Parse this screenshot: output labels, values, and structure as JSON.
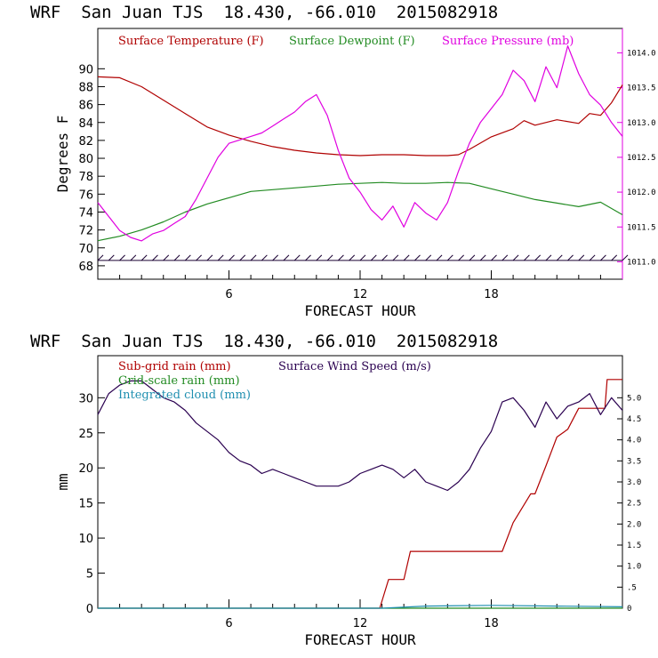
{
  "chart_data": [
    {
      "type": "line",
      "title": "WRF  San Juan TJS  18.430, -66.010  2015082918",
      "xlabel": "FORECAST HOUR",
      "ylabel": "Degrees F",
      "xlim": [
        0,
        24
      ],
      "ylim": [
        66.5,
        94.5
      ],
      "y2lim": [
        1010.75,
        1014.35
      ],
      "xticks": [
        6,
        12,
        18
      ],
      "yticks": [
        68,
        70,
        72,
        74,
        76,
        78,
        80,
        82,
        84,
        86,
        88,
        90
      ],
      "y2ticks": [
        1011.0,
        1011.5,
        1012.0,
        1012.5,
        1013.0,
        1013.5,
        1014.0
      ],
      "y2tick_labels": [
        "1011.0",
        "1011.5",
        "1012.0",
        "1012.5",
        "1013.0",
        "1013.5",
        "1014.0"
      ],
      "series": [
        {
          "name": "Surface Temperature (F)",
          "axis": "left",
          "color": "#b00000",
          "x": [
            0,
            1,
            2,
            3,
            4,
            5,
            6,
            7,
            8,
            9,
            10,
            11,
            12,
            13,
            14,
            15,
            16,
            16.5,
            17,
            18,
            19,
            19.5,
            20,
            21,
            22,
            22.5,
            23,
            23.5,
            24
          ],
          "y": [
            89.1,
            89.0,
            88.0,
            86.5,
            85.0,
            83.5,
            82.6,
            81.9,
            81.3,
            80.9,
            80.6,
            80.4,
            80.3,
            80.4,
            80.4,
            80.3,
            80.3,
            80.4,
            81.0,
            82.4,
            83.3,
            84.2,
            83.7,
            84.3,
            83.9,
            85.0,
            84.8,
            86.2,
            88.2
          ]
        },
        {
          "name": "Surface Dewpoint (F)",
          "axis": "left",
          "color": "#228b22",
          "x": [
            0,
            1,
            2,
            3,
            4,
            5,
            6,
            7,
            8,
            9,
            10,
            11,
            12,
            13,
            14,
            15,
            16,
            17,
            18,
            19,
            20,
            21,
            22,
            23,
            24
          ],
          "y": [
            70.8,
            71.3,
            72.0,
            72.9,
            74.0,
            74.9,
            75.6,
            76.3,
            76.5,
            76.7,
            76.9,
            77.1,
            77.2,
            77.3,
            77.2,
            77.2,
            77.3,
            77.2,
            76.6,
            76.0,
            75.4,
            75.0,
            74.6,
            75.1,
            73.7
          ]
        },
        {
          "name": "Surface Pressure (mb)",
          "axis": "right",
          "color": "#e000e0",
          "x": [
            0,
            0.5,
            1,
            1.5,
            2,
            2.5,
            3,
            3.5,
            4,
            4.5,
            5,
            5.5,
            6,
            6.5,
            7,
            7.5,
            8,
            8.5,
            9,
            9.5,
            10,
            10.5,
            11,
            11.5,
            12,
            12.5,
            13,
            13.5,
            14,
            14.5,
            15,
            15.5,
            16,
            16.5,
            17,
            17.5,
            18,
            18.5,
            19,
            19.5,
            20,
            20.5,
            21,
            21.5,
            22,
            22.5,
            23,
            23.5,
            24
          ],
          "y": [
            1011.85,
            1011.65,
            1011.45,
            1011.35,
            1011.3,
            1011.4,
            1011.45,
            1011.55,
            1011.65,
            1011.9,
            1012.2,
            1012.5,
            1012.7,
            1012.75,
            1012.8,
            1012.85,
            1012.95,
            1013.05,
            1013.15,
            1013.3,
            1013.4,
            1013.1,
            1012.6,
            1012.2,
            1012.0,
            1011.75,
            1011.6,
            1011.8,
            1011.5,
            1011.85,
            1011.7,
            1011.6,
            1011.85,
            1012.3,
            1012.7,
            1013.0,
            1013.2,
            1013.4,
            1013.75,
            1013.6,
            1013.3,
            1013.8,
            1013.5,
            1014.1,
            1013.7,
            1013.4,
            1013.25,
            1013.0,
            1012.8
          ]
        }
      ],
      "wind_barb_row": {
        "y": 68.6,
        "color": "#1a0033",
        "x": [
          0,
          0.5,
          1,
          1.5,
          2,
          2.5,
          3,
          3.5,
          4,
          4.5,
          5,
          5.5,
          6,
          6.5,
          7,
          7.5,
          8,
          8.5,
          9,
          9.5,
          10,
          10.5,
          11,
          11.5,
          12,
          12.5,
          13,
          13.5,
          14,
          14.5,
          15,
          15.5,
          16,
          16.5,
          17,
          17.5,
          18,
          18.5,
          19,
          19.5,
          20,
          20.5,
          21,
          21.5,
          22,
          22.5,
          23,
          23.5,
          24
        ]
      }
    },
    {
      "type": "line",
      "title": "WRF  San Juan TJS  18.430, -66.010  2015082918",
      "xlabel": "FORECAST HOUR",
      "ylabel": "mm",
      "xlim": [
        0,
        24
      ],
      "ylim": [
        0,
        36
      ],
      "y2lim": [
        0,
        6.0
      ],
      "xticks": [
        6,
        12,
        18
      ],
      "yticks": [
        0,
        5,
        10,
        15,
        20,
        25,
        30
      ],
      "y2ticks": [
        0,
        0.5,
        1.0,
        1.5,
        2.0,
        2.5,
        3.0,
        3.5,
        4.0,
        4.5,
        5.0
      ],
      "y2tick_labels": [
        "0",
        ".5",
        "1.0",
        "1.5",
        "2.0",
        "2.5",
        "3.0",
        "3.5",
        "4.0",
        "4.5",
        "5.0"
      ],
      "legend_rows": [
        [
          {
            "name": "Sub-grid rain (mm)",
            "color": "#b00000"
          },
          {
            "name": "Surface Wind Speed (m/s)",
            "color": "#2a0050"
          }
        ],
        [
          {
            "name": "Grid-scale rain (mm)",
            "color": "#228b22"
          }
        ],
        [
          {
            "name": "Integrated cloud (mm)",
            "color": "#1f8fb0"
          }
        ]
      ],
      "series": [
        {
          "name": "Sub-grid rain (mm)",
          "axis": "left",
          "color": "#b00000",
          "x": [
            0,
            12.9,
            13.3,
            14.0,
            14.3,
            18.5,
            19.0,
            19.8,
            20.0,
            20.5,
            21.0,
            21.5,
            22.0,
            23.2,
            23.3,
            24
          ],
          "y": [
            0,
            0,
            4.1,
            4.1,
            8.1,
            8.1,
            12.2,
            16.3,
            16.3,
            20.3,
            24.4,
            25.5,
            28.5,
            28.5,
            32.6,
            32.6
          ]
        },
        {
          "name": "Grid-scale rain (mm)",
          "axis": "left",
          "color": "#228b22",
          "x": [
            0,
            24
          ],
          "y": [
            0,
            0
          ]
        },
        {
          "name": "Integrated cloud (mm)",
          "axis": "left",
          "color": "#1f8fb0",
          "x": [
            0,
            13,
            15,
            18,
            21,
            24
          ],
          "y": [
            0,
            0,
            0.3,
            0.4,
            0.3,
            0.2
          ]
        },
        {
          "name": "Surface Wind Speed (m/s)",
          "axis": "right",
          "color": "#2a0050",
          "x": [
            0,
            0.5,
            1,
            1.5,
            2,
            2.5,
            3,
            3.5,
            4,
            4.5,
            5,
            5.5,
            6,
            6.5,
            7,
            7.5,
            8,
            8.5,
            9,
            9.5,
            10,
            10.5,
            11,
            11.5,
            12,
            12.5,
            13,
            13.5,
            14,
            14.5,
            15,
            15.5,
            16,
            16.5,
            17,
            17.5,
            18,
            18.5,
            19,
            19.5,
            20,
            20.5,
            21,
            21.5,
            22,
            22.5,
            23,
            23.5,
            24
          ],
          "y": [
            4.6,
            5.1,
            5.3,
            5.4,
            5.4,
            5.2,
            5.0,
            4.9,
            4.7,
            4.4,
            4.2,
            4.0,
            3.7,
            3.5,
            3.4,
            3.2,
            3.3,
            3.2,
            3.1,
            3.0,
            2.9,
            2.9,
            2.9,
            3.0,
            3.2,
            3.3,
            3.4,
            3.3,
            3.1,
            3.3,
            3.0,
            2.9,
            2.8,
            3.0,
            3.3,
            3.8,
            4.2,
            4.9,
            5.0,
            4.7,
            4.3,
            4.9,
            4.5,
            4.8,
            4.9,
            5.1,
            4.6,
            5.0,
            4.7
          ]
        }
      ]
    }
  ]
}
